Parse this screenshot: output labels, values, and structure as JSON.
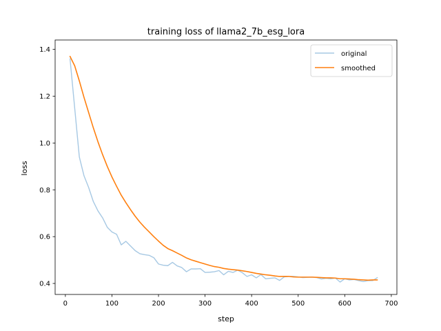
{
  "chart_data": {
    "type": "line",
    "title": "training loss of llama2_7b_esg_lora",
    "xlabel": "step",
    "ylabel": "loss",
    "xlim": [
      -22,
      712
    ],
    "ylim": [
      0.353,
      1.44
    ],
    "xticks": [
      0,
      100,
      200,
      300,
      400,
      500,
      600,
      700
    ],
    "yticks": [
      0.4,
      0.6,
      0.8,
      1.0,
      1.2,
      1.4
    ],
    "grid": false,
    "legend_position": "top-right",
    "colors": {
      "original": "#a6c8e3",
      "smoothed": "#ff7f0e"
    },
    "series": [
      {
        "name": "original",
        "x": [
          10,
          20,
          30,
          40,
          50,
          60,
          70,
          80,
          90,
          100,
          110,
          120,
          130,
          140,
          150,
          160,
          170,
          180,
          190,
          200,
          210,
          220,
          230,
          240,
          250,
          260,
          270,
          280,
          290,
          300,
          310,
          320,
          330,
          340,
          350,
          360,
          370,
          380,
          390,
          400,
          410,
          420,
          430,
          440,
          450,
          460,
          470,
          480,
          490,
          500,
          510,
          520,
          530,
          540,
          550,
          560,
          570,
          580,
          590,
          600,
          610,
          620,
          630,
          640,
          650,
          660,
          670
        ],
        "values": [
          1.36,
          1.15,
          0.94,
          0.86,
          0.81,
          0.75,
          0.71,
          0.68,
          0.64,
          0.62,
          0.61,
          0.565,
          0.58,
          0.56,
          0.54,
          0.527,
          0.523,
          0.52,
          0.51,
          0.483,
          0.478,
          0.476,
          0.49,
          0.475,
          0.468,
          0.45,
          0.462,
          0.462,
          0.463,
          0.447,
          0.448,
          0.45,
          0.455,
          0.437,
          0.452,
          0.447,
          0.457,
          0.446,
          0.43,
          0.437,
          0.424,
          0.438,
          0.42,
          0.422,
          0.424,
          0.413,
          0.428,
          0.43,
          0.43,
          0.428,
          0.425,
          0.426,
          0.427,
          0.425,
          0.419,
          0.422,
          0.42,
          0.423,
          0.406,
          0.42,
          0.415,
          0.417,
          0.412,
          0.408,
          0.412,
          0.412,
          0.425
        ]
      },
      {
        "name": "smoothed",
        "x": [
          10,
          20,
          30,
          40,
          50,
          60,
          70,
          80,
          90,
          100,
          110,
          120,
          130,
          140,
          150,
          160,
          170,
          180,
          190,
          200,
          210,
          220,
          230,
          240,
          250,
          260,
          270,
          280,
          290,
          300,
          310,
          320,
          330,
          340,
          350,
          360,
          370,
          380,
          390,
          400,
          410,
          420,
          430,
          440,
          450,
          460,
          470,
          480,
          490,
          500,
          510,
          520,
          530,
          540,
          550,
          560,
          570,
          580,
          590,
          600,
          610,
          620,
          630,
          640,
          650,
          660,
          670
        ],
        "values": [
          1.37,
          1.33,
          1.265,
          1.195,
          1.13,
          1.065,
          1.005,
          0.95,
          0.9,
          0.855,
          0.815,
          0.777,
          0.745,
          0.715,
          0.687,
          0.662,
          0.64,
          0.62,
          0.6,
          0.581,
          0.563,
          0.549,
          0.54,
          0.53,
          0.52,
          0.509,
          0.501,
          0.495,
          0.489,
          0.483,
          0.477,
          0.472,
          0.469,
          0.464,
          0.461,
          0.459,
          0.457,
          0.454,
          0.451,
          0.447,
          0.443,
          0.44,
          0.437,
          0.435,
          0.432,
          0.43,
          0.43,
          0.43,
          0.428,
          0.427,
          0.427,
          0.427,
          0.427,
          0.426,
          0.425,
          0.424,
          0.424,
          0.423,
          0.42,
          0.42,
          0.419,
          0.418,
          0.416,
          0.415,
          0.414,
          0.415,
          0.415
        ]
      }
    ]
  }
}
